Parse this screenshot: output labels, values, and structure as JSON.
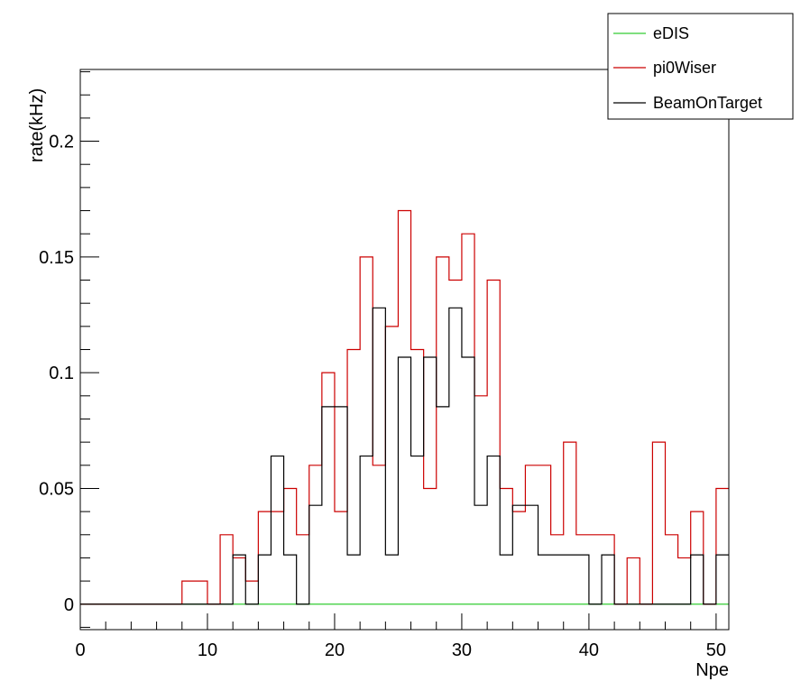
{
  "chart_data": {
    "type": "histogram-step",
    "xlabel": "Npe",
    "ylabel": "rate(kHz)",
    "xlim": [
      0,
      51
    ],
    "ylim": [
      -0.011,
      0.231
    ],
    "x_ticks": [
      0,
      10,
      20,
      30,
      40,
      50
    ],
    "x_tick_labels": [
      "0",
      "10",
      "20",
      "30",
      "40",
      "50"
    ],
    "y_ticks": [
      0,
      0.05,
      0.1,
      0.15,
      0.2
    ],
    "y_tick_labels": [
      "0",
      "0.05",
      "0.1",
      "0.15",
      "0.2"
    ],
    "bin_edges": [
      0,
      1,
      2,
      3,
      4,
      5,
      6,
      7,
      8,
      9,
      10,
      11,
      12,
      13,
      14,
      15,
      16,
      17,
      18,
      19,
      20,
      21,
      22,
      23,
      24,
      25,
      26,
      27,
      28,
      29,
      30,
      31,
      32,
      33,
      34,
      35,
      36,
      37,
      38,
      39,
      40,
      41,
      42,
      43,
      44,
      45,
      46,
      47,
      48,
      49,
      50,
      51
    ],
    "grid": false,
    "legend_position": "top-right",
    "series": [
      {
        "name": "eDIS",
        "color": "#33cc33",
        "values": [
          0,
          0,
          0,
          0,
          0,
          0,
          0,
          0,
          0,
          0,
          0,
          0,
          0,
          0,
          0,
          0,
          0,
          0,
          0,
          0,
          0,
          0,
          0,
          0,
          0,
          0,
          0,
          0,
          0,
          0,
          0,
          0,
          0,
          0,
          0,
          0,
          0,
          0,
          0,
          0,
          0,
          0,
          0,
          0,
          0,
          0,
          0,
          0,
          0,
          0,
          0
        ]
      },
      {
        "name": "pi0Wiser",
        "color": "#cc0000",
        "values": [
          0,
          0,
          0,
          0,
          0,
          0,
          0,
          0,
          0.01,
          0.01,
          0,
          0.03,
          0.02,
          0.01,
          0.04,
          0.04,
          0.05,
          0.03,
          0.06,
          0.1,
          0.04,
          0.11,
          0.15,
          0.06,
          0.12,
          0.17,
          0.11,
          0.05,
          0.15,
          0.14,
          0.16,
          0.09,
          0.14,
          0.05,
          0.04,
          0.06,
          0.06,
          0.03,
          0.07,
          0.03,
          0.03,
          0.03,
          0,
          0.02,
          0,
          0.07,
          0.03,
          0.02,
          0.04,
          0,
          0.05
        ]
      },
      {
        "name": "BeamOnTarget",
        "color": "#000000",
        "values": [
          0,
          0,
          0,
          0,
          0,
          0,
          0,
          0,
          0,
          0,
          0,
          0,
          0.0213,
          0,
          0.0213,
          0.064,
          0.0213,
          0,
          0.0427,
          0.0853,
          0.0853,
          0.0213,
          0.064,
          0.128,
          0.0213,
          0.1067,
          0.064,
          0.1067,
          0.0853,
          0.128,
          0.1067,
          0.0427,
          0.064,
          0.0213,
          0.0427,
          0.0427,
          0.0213,
          0.0213,
          0.0213,
          0.0213,
          0,
          0.0213,
          0,
          0,
          0,
          0,
          0,
          0,
          0.0213,
          0,
          0.0213
        ]
      }
    ]
  }
}
